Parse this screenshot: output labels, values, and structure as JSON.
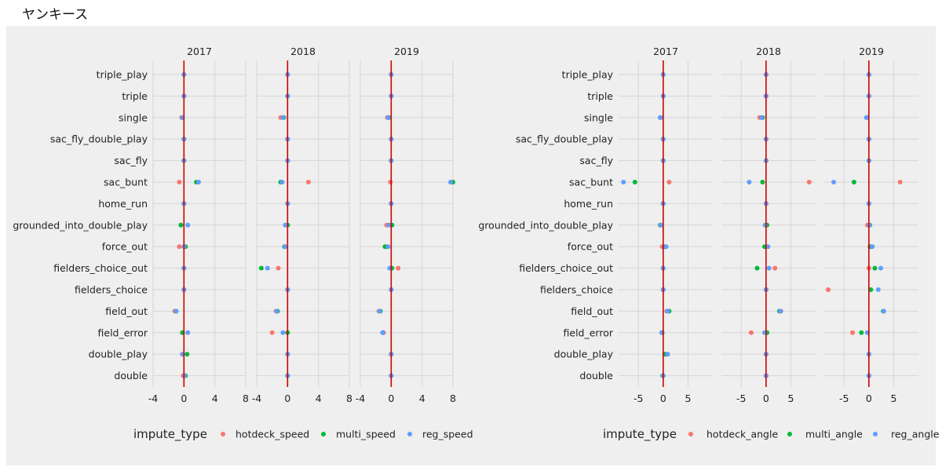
{
  "page": {
    "title": "ヤンキース"
  },
  "colors": {
    "hotdeck": "#F8766D",
    "multi": "#00BA38",
    "reg": "#619CFF",
    "zero_line": "#CC0000",
    "grid": "#d6d6d6",
    "text": "#222222"
  },
  "chart_data": [
    {
      "type": "scatter",
      "facet_labels": [
        "2017",
        "2018",
        "2019"
      ],
      "categories": [
        "triple_play",
        "triple",
        "single",
        "sac_fly_double_play",
        "sac_fly",
        "sac_bunt",
        "home_run",
        "grounded_into_double_play",
        "force_out",
        "fielders_choice_out",
        "fielders_choice",
        "field_out",
        "field_error",
        "double_play",
        "double"
      ],
      "xlim": [
        -4,
        8
      ],
      "x_ticks": [
        -4,
        0,
        4,
        8
      ],
      "x_tick_labels": [
        "-4",
        "0",
        "4",
        "8"
      ],
      "legend_title": "impute_type",
      "legend_position": "bottom",
      "series": [
        {
          "name": "hotdeck_speed",
          "color_key": "hotdeck",
          "facets": [
            [
              0,
              0,
              -0.3,
              0,
              0,
              -0.6,
              0,
              -0.4,
              -0.6,
              0,
              0,
              -1.2,
              -0.2,
              -0.2,
              -0.1
            ],
            [
              0,
              0,
              -0.9,
              0,
              0,
              2.7,
              0,
              0,
              -0.3,
              -1.2,
              0,
              -1.5,
              -2.0,
              0,
              0
            ],
            [
              0,
              0,
              -0.5,
              0,
              0,
              -0.1,
              0,
              -0.6,
              -0.6,
              0.9,
              0,
              -1.6,
              -1.0,
              0,
              0
            ]
          ]
        },
        {
          "name": "multi_speed",
          "color_key": "multi",
          "facets": [
            [
              0,
              0,
              -0.2,
              0,
              0,
              1.6,
              0,
              -0.4,
              0.2,
              0,
              0,
              -1.0,
              -0.2,
              0.4,
              0.2
            ],
            [
              0,
              0,
              -0.5,
              0,
              0,
              -0.9,
              0,
              0,
              -0.4,
              -3.4,
              0,
              -1.3,
              0,
              0,
              0
            ],
            [
              0,
              0,
              -0.3,
              0,
              0,
              8.0,
              0,
              0.1,
              -0.8,
              0.1,
              0,
              -1.4,
              -1.1,
              0,
              0
            ]
          ]
        },
        {
          "name": "reg_speed",
          "color_key": "reg",
          "facets": [
            [
              0,
              0,
              -0.2,
              0,
              0,
              1.9,
              0,
              0.5,
              0,
              0,
              0,
              -1.0,
              0.5,
              -0.2,
              0.1
            ],
            [
              0,
              0,
              -0.6,
              0,
              0,
              -0.7,
              0,
              -0.3,
              -0.3,
              -2.6,
              0,
              -1.4,
              -0.6,
              0,
              0
            ],
            [
              0,
              0,
              -0.4,
              0,
              0,
              7.7,
              0,
              -0.3,
              -0.4,
              -0.2,
              0,
              -1.5,
              -1.1,
              0,
              0
            ]
          ]
        }
      ],
      "legend_labels": [
        "hotdeck_speed",
        "multi_speed",
        "reg_speed"
      ]
    },
    {
      "type": "scatter",
      "facet_labels": [
        "2017",
        "2018",
        "2019"
      ],
      "categories": [
        "triple_play",
        "triple",
        "single",
        "sac_fly_double_play",
        "sac_fly",
        "sac_bunt",
        "home_run",
        "grounded_into_double_play",
        "force_out",
        "fielders_choice_out",
        "fielders_choice",
        "field_out",
        "field_error",
        "double_play",
        "double"
      ],
      "xlim": [
        -9,
        10
      ],
      "x_ticks": [
        -5,
        0,
        5
      ],
      "x_tick_labels": [
        "-5",
        "0",
        "5"
      ],
      "legend_title": "impute_type",
      "legend_position": "bottom",
      "series": [
        {
          "name": "hotdeck_angle",
          "color_key": "hotdeck",
          "facets": [
            [
              0,
              0,
              -0.5,
              0,
              0,
              1.2,
              0,
              -0.5,
              -0.2,
              0,
              0,
              0.7,
              -0.3,
              0.3,
              0
            ],
            [
              0,
              0,
              -1.3,
              0,
              0,
              8.7,
              0,
              0,
              -0.1,
              1.8,
              0,
              3.0,
              -3.0,
              0,
              0
            ],
            [
              0,
              0,
              -0.5,
              0,
              0,
              6.3,
              0,
              -0.3,
              0.2,
              0,
              -8.2,
              3.0,
              -3.3,
              0,
              0
            ]
          ]
        },
        {
          "name": "multi_angle",
          "color_key": "multi",
          "facets": [
            [
              0,
              0,
              -0.6,
              0,
              0,
              -5.7,
              0,
              -0.6,
              0.3,
              0,
              0,
              1.2,
              -0.2,
              0.5,
              -0.1
            ],
            [
              0,
              0,
              -0.7,
              0,
              0,
              -0.7,
              0,
              0.2,
              -0.3,
              -1.8,
              0,
              2.7,
              0.2,
              0,
              0
            ],
            [
              0,
              0,
              -0.4,
              0,
              0,
              -3.0,
              0,
              0.2,
              0.3,
              1.2,
              0.4,
              2.9,
              -1.5,
              0,
              0
            ]
          ]
        },
        {
          "name": "reg_angle",
          "color_key": "reg",
          "facets": [
            [
              0,
              0,
              -0.6,
              0,
              0,
              -8.0,
              0,
              -0.5,
              0.6,
              0,
              0,
              0.9,
              -0.3,
              0.9,
              0
            ],
            [
              0,
              0,
              -0.9,
              0,
              0,
              -3.4,
              0,
              -0.2,
              0.4,
              0.6,
              0,
              2.9,
              -0.3,
              0,
              0
            ],
            [
              0,
              0,
              -0.5,
              0,
              0,
              -7.1,
              0,
              0.1,
              0.7,
              2.4,
              1.9,
              3.0,
              -0.3,
              0,
              0
            ]
          ]
        }
      ],
      "legend_labels": [
        "hotdeck_angle",
        "multi_angle",
        "reg_angle"
      ]
    }
  ]
}
